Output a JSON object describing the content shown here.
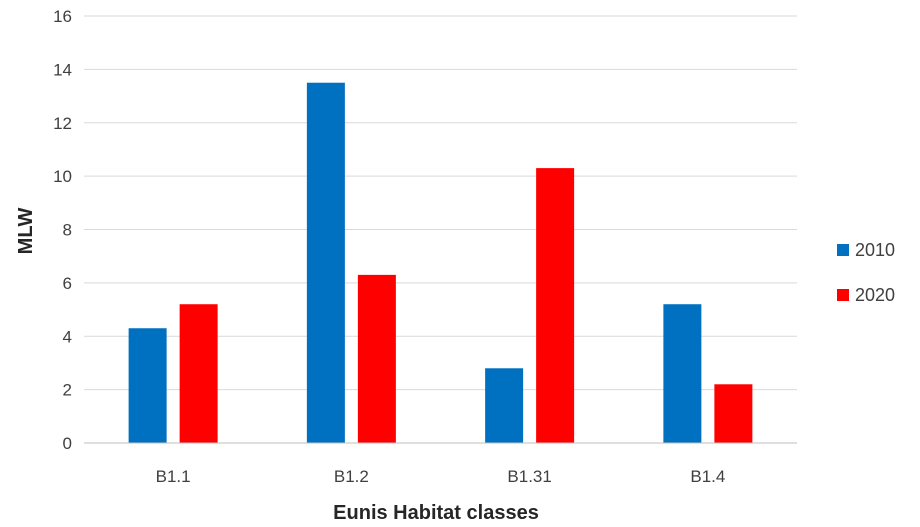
{
  "chart_data": {
    "type": "bar",
    "title": "",
    "xlabel": "Eunis Habitat classes",
    "ylabel": "MLW",
    "categories": [
      "B1.1",
      "B1.2",
      "B1.31",
      "B1.4"
    ],
    "series": [
      {
        "name": "2010",
        "color": "#0070C0",
        "values": [
          4.3,
          13.5,
          2.8,
          5.2
        ]
      },
      {
        "name": "2020",
        "color": "#FF0000",
        "values": [
          5.2,
          6.3,
          10.3,
          2.2
        ]
      }
    ],
    "ylim": [
      0,
      16
    ],
    "yticks": [
      "0",
      "2",
      "4",
      "6",
      "8",
      "10",
      "12",
      "14",
      "16"
    ],
    "grid": true,
    "legend_position": "right"
  }
}
